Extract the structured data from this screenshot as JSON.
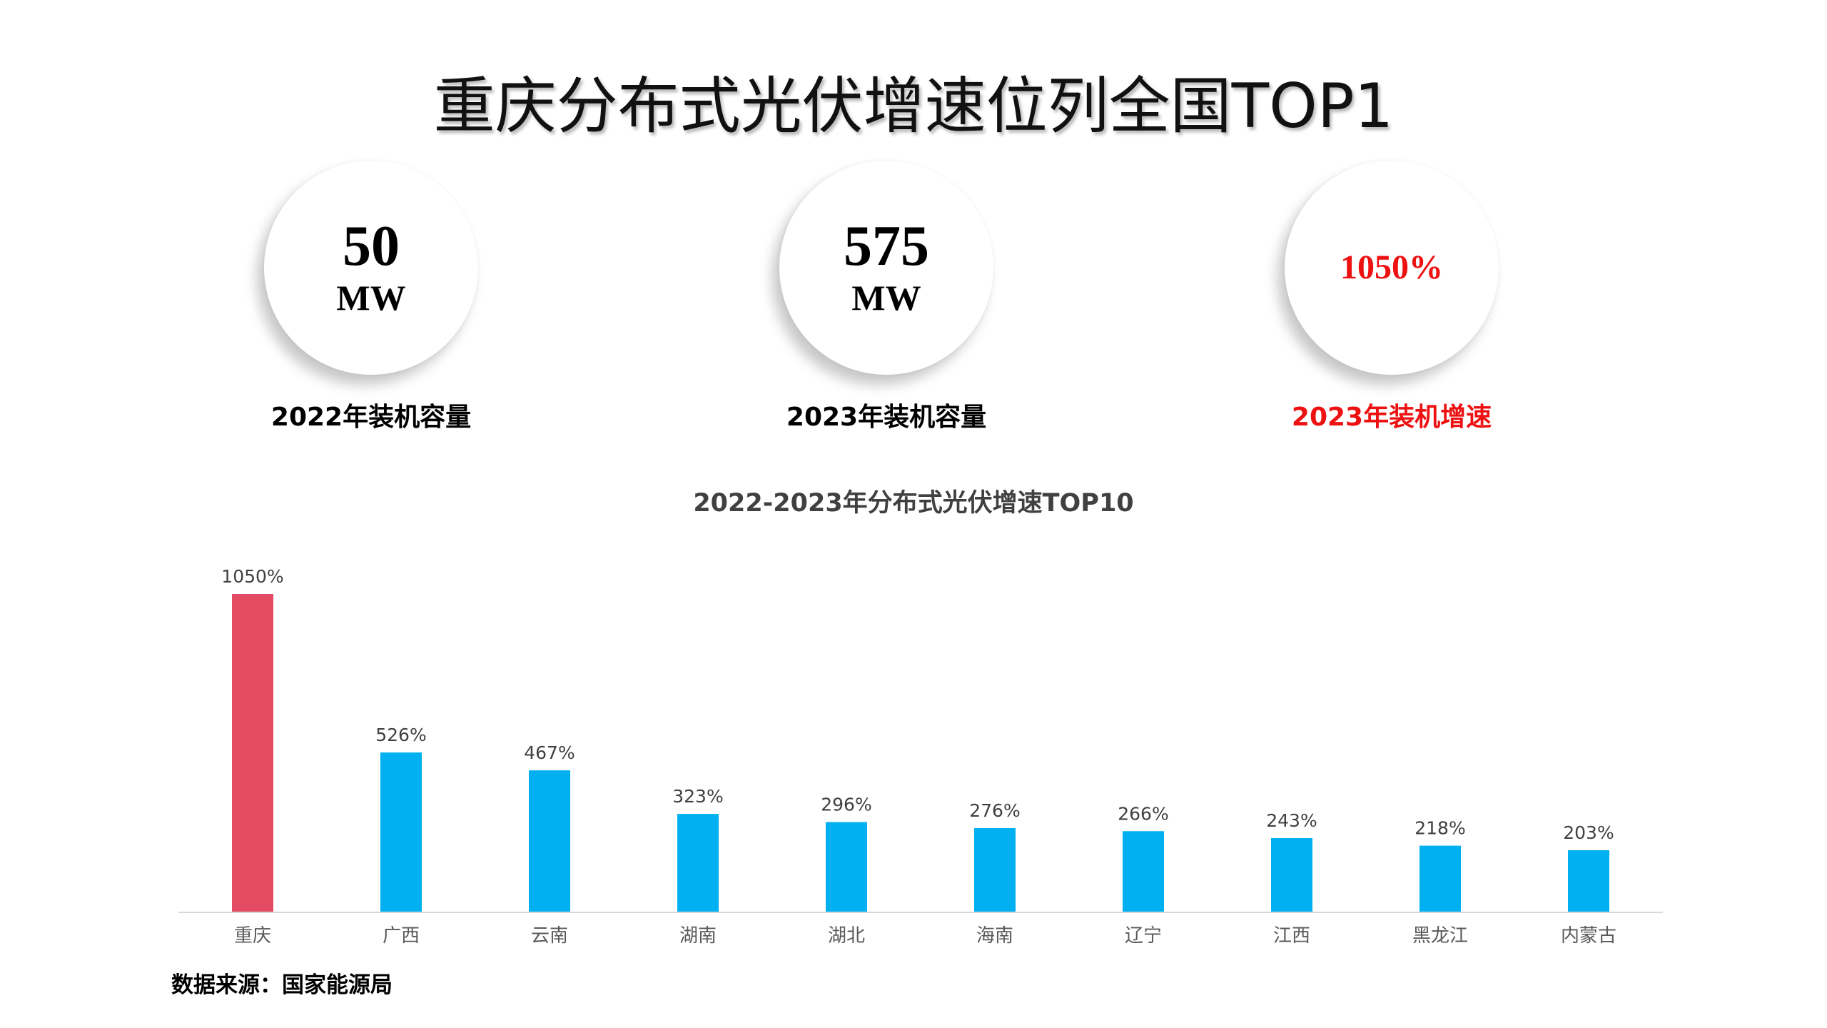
{
  "header": {
    "title": "重庆分布式光伏增速位列全国TOP1"
  },
  "kpis": [
    {
      "value": "50",
      "unit": "MW",
      "label": "2022年装机容量"
    },
    {
      "value": "575",
      "unit": "MW",
      "label": "2023年装机容量"
    },
    {
      "value": "1050%",
      "unit": "",
      "label": "2023年装机增速"
    }
  ],
  "colors": {
    "highlight": "#e34b63",
    "bar": "#00b0f0",
    "accent_text": "#ee1111"
  },
  "chart_data": {
    "type": "bar",
    "title": "2022-2023年分布式光伏增速TOP10",
    "categories": [
      "重庆",
      "广西",
      "云南",
      "湖南",
      "湖北",
      "海南",
      "辽宁",
      "江西",
      "黑龙江",
      "内蒙古"
    ],
    "values": [
      1050,
      526,
      467,
      323,
      296,
      276,
      266,
      243,
      218,
      203
    ],
    "data_labels": [
      "1050%",
      "526%",
      "467%",
      "323%",
      "296%",
      "276%",
      "266%",
      "243%",
      "218%",
      "203%"
    ],
    "unit": "%",
    "ylim": [
      0,
      1050
    ],
    "xlabel": "",
    "ylabel": "",
    "grid": false,
    "highlight_index": 0
  },
  "footer": {
    "source": "数据来源：国家能源局"
  }
}
